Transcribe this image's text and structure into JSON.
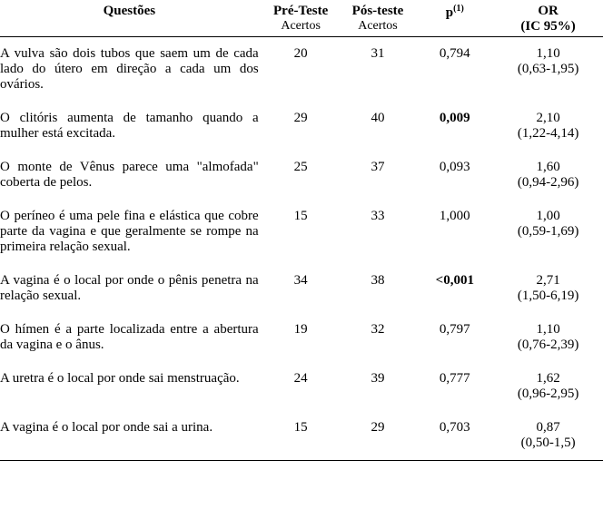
{
  "headers": {
    "questoes": "Questões",
    "pre": "Pré-Teste",
    "pre_sub": "Acertos",
    "pos": "Pós-teste",
    "pos_sub": "Acertos",
    "p": "p",
    "p_sup": "(1)",
    "or": "OR",
    "or_sub": "(IC 95%)"
  },
  "rows": [
    {
      "q": "A vulva são dois tubos que saem um de cada lado do útero em direção a cada um dos ovários.",
      "pre": "20",
      "pos": "31",
      "p": "0,794",
      "p_bold": false,
      "or": "1,10",
      "ci": "(0,63-1,95)"
    },
    {
      "q": "O clitóris aumenta de tamanho quando a mulher está excitada.",
      "pre": "29",
      "pos": "40",
      "p": "0,009",
      "p_bold": true,
      "or": "2,10",
      "ci": "(1,22-4,14)"
    },
    {
      "q": "O monte de Vênus parece uma \"almofada\" coberta de pelos.",
      "pre": "25",
      "pos": "37",
      "p": "0,093",
      "p_bold": false,
      "or": "1,60",
      "ci": "(0,94-2,96)"
    },
    {
      "q": "O períneo é uma pele fina e elástica que cobre parte da vagina e que geralmente se rompe na primeira relação sexual.",
      "pre": "15",
      "pos": "33",
      "p": "1,000",
      "p_bold": false,
      "or": "1,00",
      "ci": "(0,59-1,69)"
    },
    {
      "q": "A vagina é o local por onde o pênis penetra na relação sexual.",
      "pre": "34",
      "pos": "38",
      "p": "<0,001",
      "p_bold": true,
      "or": "2,71",
      "ci": "(1,50-6,19)"
    },
    {
      "q": "O hímen é a parte localizada entre a abertura da vagina e o ânus.",
      "pre": "19",
      "pos": "32",
      "p": "0,797",
      "p_bold": false,
      "or": "1,10",
      "ci": "(0,76-2,39)"
    },
    {
      "q": "A uretra é o local por onde sai menstruação.",
      "pre": "24",
      "pos": "39",
      "p": "0,777",
      "p_bold": false,
      "or": "1,62",
      "ci": "(0,96-2,95)"
    },
    {
      "q": "A vagina é o local por onde sai a urina.",
      "pre": "15",
      "pos": "29",
      "p": "0,703",
      "p_bold": false,
      "or": "0,87",
      "ci": "(0,50-1,5)"
    }
  ]
}
